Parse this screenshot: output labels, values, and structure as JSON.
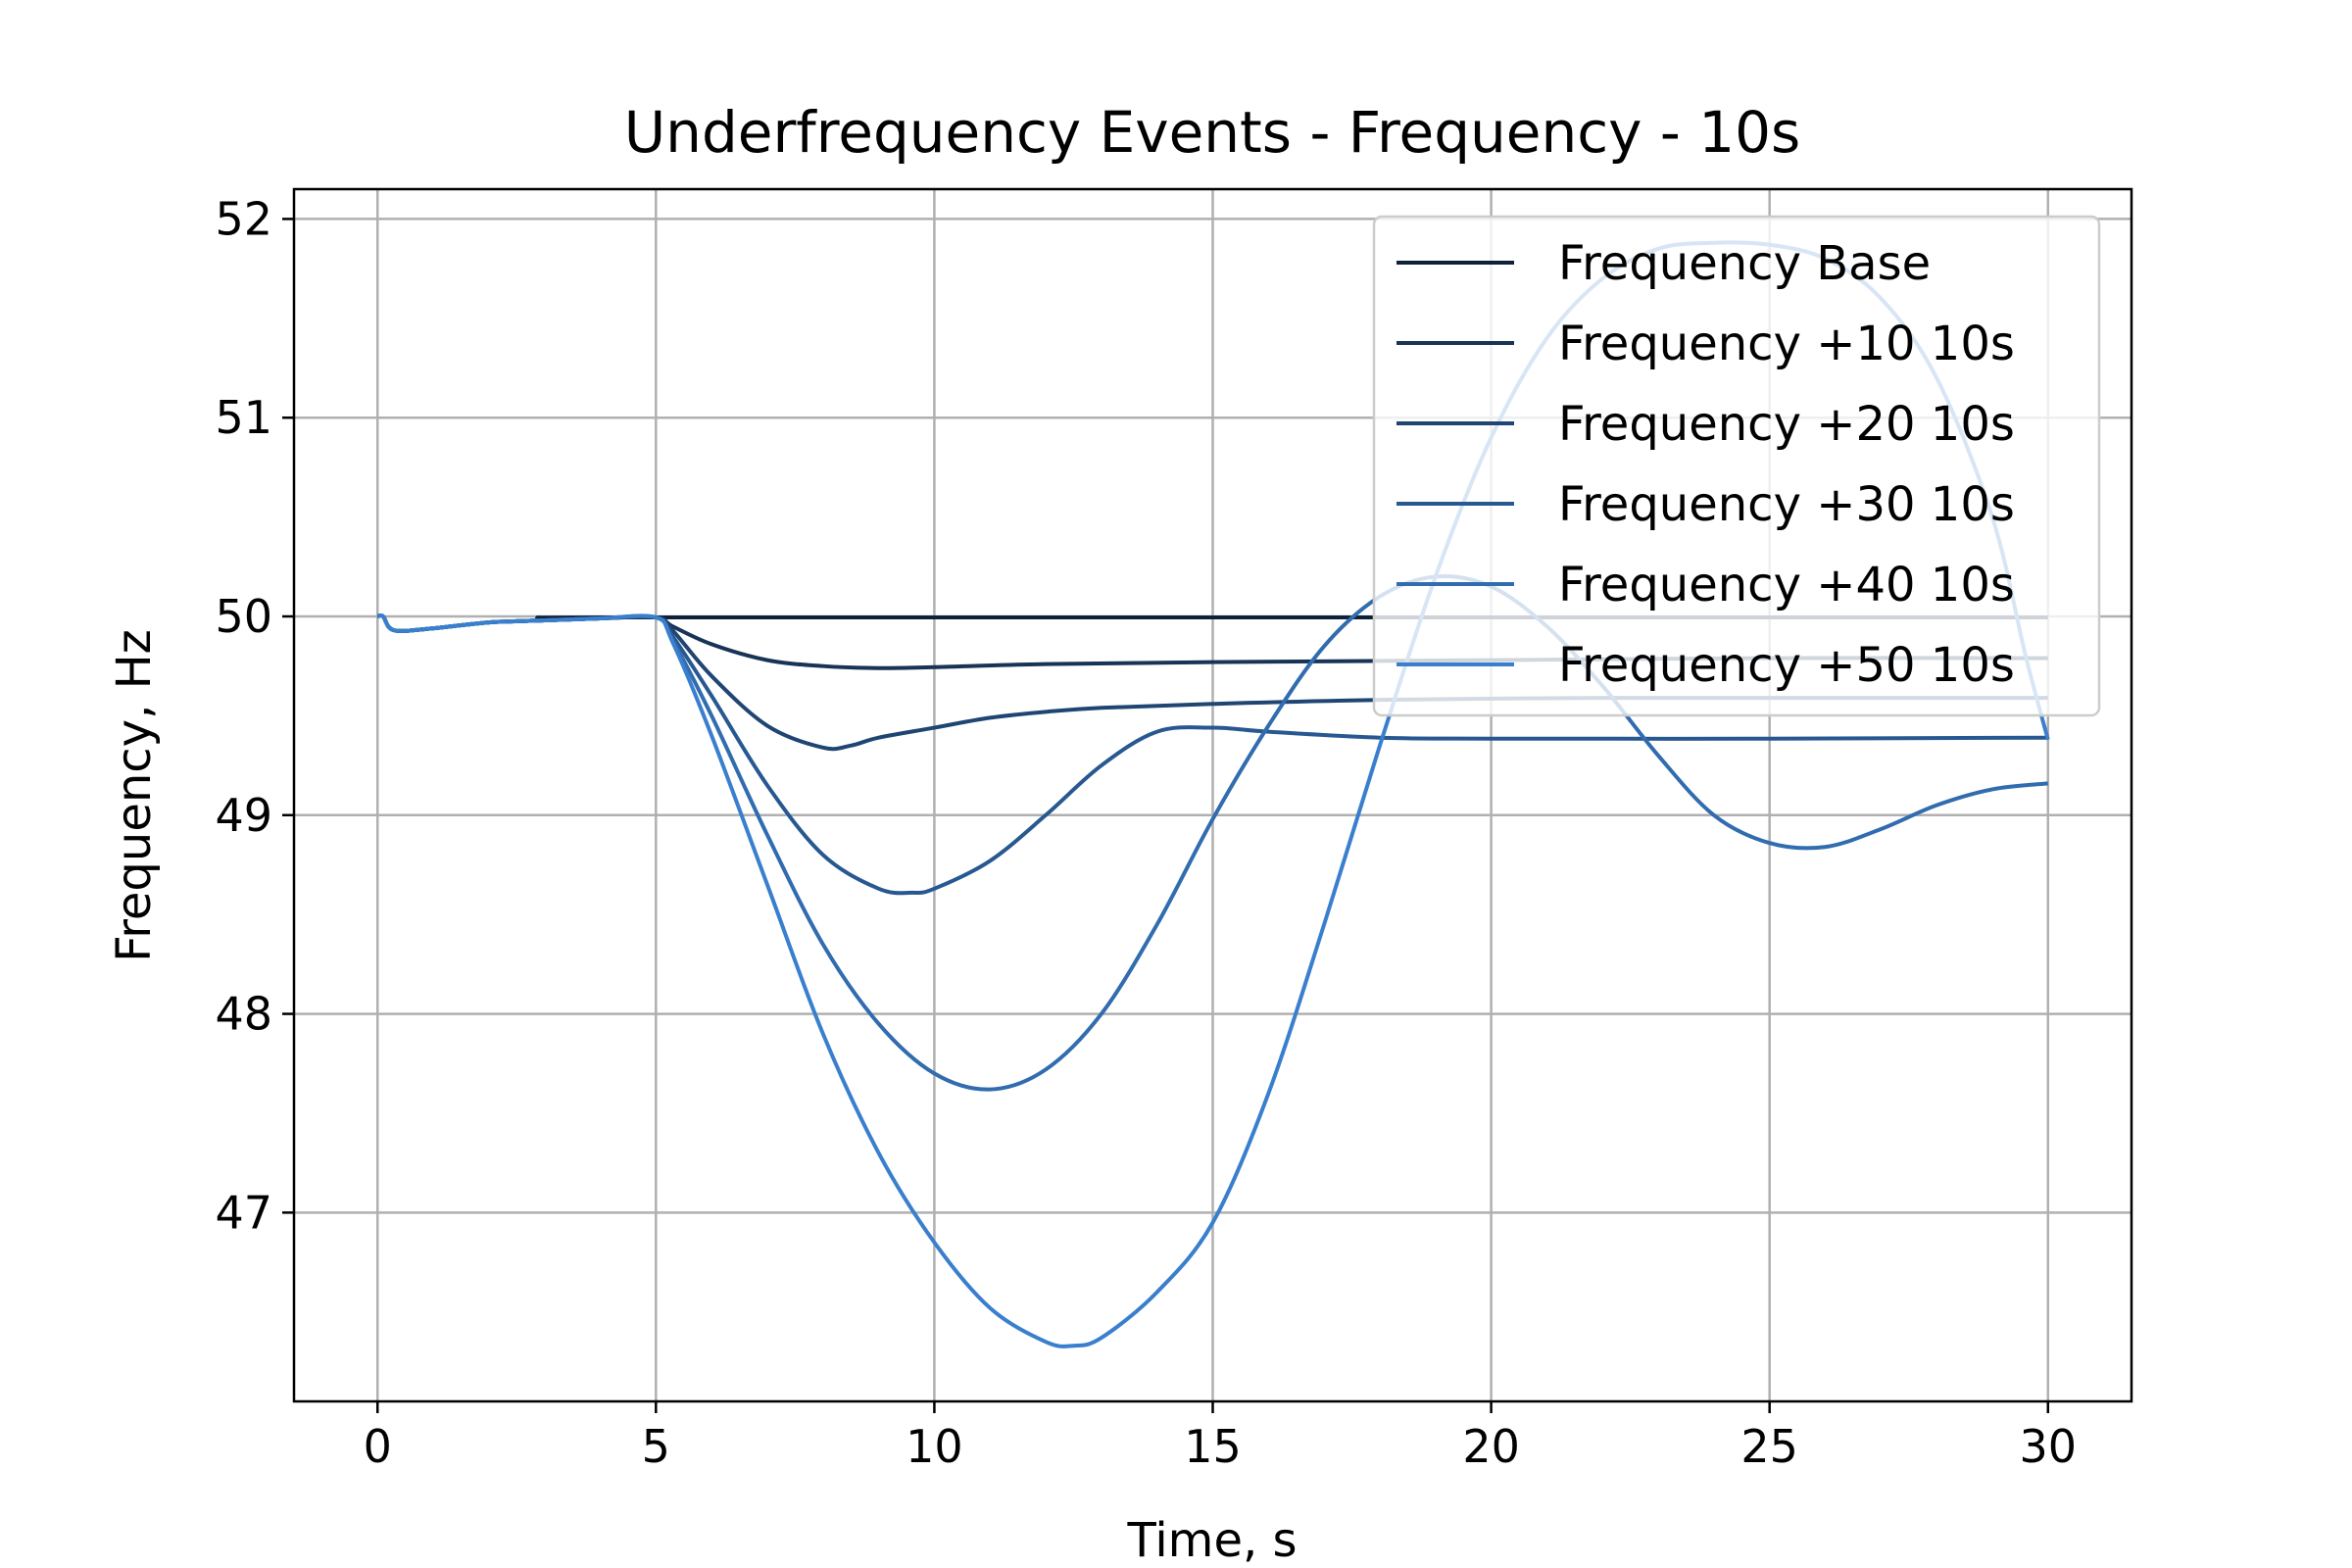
{
  "chart_data": {
    "type": "line",
    "title": "Underfrequency Events - Frequency - 10s",
    "xlabel": "Time, s",
    "ylabel": "Frequency, Hz",
    "xlim": [
      -1.5,
      31.5
    ],
    "ylim": [
      46.05,
      52.15
    ],
    "xticks": [
      0,
      5,
      10,
      15,
      20,
      25,
      30
    ],
    "yticks": [
      47,
      48,
      49,
      50,
      51,
      52
    ],
    "xtick_labels": [
      "0",
      "5",
      "10",
      "15",
      "20",
      "25",
      "30"
    ],
    "ytick_labels": [
      "47",
      "48",
      "49",
      "50",
      "51",
      "52"
    ],
    "grid": true,
    "legend_position": "top-right",
    "series": [
      {
        "name": "Frequency Base",
        "color": "#0f213a",
        "points": [
          [
            0,
            50.0
          ],
          [
            0.1,
            50.0
          ],
          [
            0.3,
            49.93
          ],
          [
            1,
            49.94
          ],
          [
            2,
            49.97
          ],
          [
            3,
            49.98
          ],
          [
            4,
            49.99
          ],
          [
            5,
            49.995
          ],
          [
            30,
            49.995
          ]
        ]
      },
      {
        "name": "Frequency +10 10s",
        "color": "#173356",
        "points": [
          [
            0,
            50.0
          ],
          [
            0.1,
            50.0
          ],
          [
            0.3,
            49.93
          ],
          [
            1,
            49.94
          ],
          [
            2,
            49.97
          ],
          [
            3,
            49.98
          ],
          [
            4,
            49.99
          ],
          [
            5,
            49.995
          ],
          [
            5.3,
            49.95
          ],
          [
            6,
            49.86
          ],
          [
            7,
            49.78
          ],
          [
            8,
            49.75
          ],
          [
            9,
            49.74
          ],
          [
            10,
            49.745
          ],
          [
            12,
            49.76
          ],
          [
            15,
            49.77
          ],
          [
            20,
            49.78
          ],
          [
            25,
            49.79
          ],
          [
            30,
            49.79
          ]
        ]
      },
      {
        "name": "Frequency +20 10s",
        "color": "#1f4573",
        "points": [
          [
            0,
            50.0
          ],
          [
            0.1,
            50.0
          ],
          [
            0.3,
            49.93
          ],
          [
            1,
            49.94
          ],
          [
            2,
            49.97
          ],
          [
            3,
            49.98
          ],
          [
            4,
            49.99
          ],
          [
            5,
            49.995
          ],
          [
            5.3,
            49.93
          ],
          [
            6,
            49.7
          ],
          [
            7,
            49.45
          ],
          [
            8,
            49.34
          ],
          [
            8.5,
            49.35
          ],
          [
            9,
            49.39
          ],
          [
            10,
            49.44
          ],
          [
            11,
            49.49
          ],
          [
            12,
            49.52
          ],
          [
            13,
            49.54
          ],
          [
            15,
            49.56
          ],
          [
            18,
            49.58
          ],
          [
            22,
            49.59
          ],
          [
            26,
            49.59
          ],
          [
            30,
            49.59
          ]
        ]
      },
      {
        "name": "Frequency +30 10s",
        "color": "#285891",
        "points": [
          [
            0,
            50.0
          ],
          [
            0.1,
            50.0
          ],
          [
            0.3,
            49.93
          ],
          [
            1,
            49.94
          ],
          [
            2,
            49.97
          ],
          [
            3,
            49.98
          ],
          [
            4,
            49.99
          ],
          [
            5,
            49.995
          ],
          [
            5.3,
            49.9
          ],
          [
            6,
            49.6
          ],
          [
            7,
            49.15
          ],
          [
            8,
            48.8
          ],
          [
            9,
            48.63
          ],
          [
            9.6,
            48.61
          ],
          [
            10,
            48.63
          ],
          [
            11,
            48.77
          ],
          [
            12,
            49.0
          ],
          [
            13,
            49.25
          ],
          [
            14,
            49.42
          ],
          [
            15,
            49.44
          ],
          [
            16,
            49.42
          ],
          [
            18,
            49.39
          ],
          [
            20,
            49.385
          ],
          [
            25,
            49.385
          ],
          [
            30,
            49.39
          ]
        ]
      },
      {
        "name": "Frequency +40 10s",
        "color": "#316caf",
        "points": [
          [
            0,
            50.0
          ],
          [
            0.1,
            50.0
          ],
          [
            0.3,
            49.93
          ],
          [
            1,
            49.94
          ],
          [
            2,
            49.97
          ],
          [
            3,
            49.98
          ],
          [
            4,
            49.99
          ],
          [
            5,
            49.995
          ],
          [
            5.3,
            49.88
          ],
          [
            6,
            49.5
          ],
          [
            7,
            48.9
          ],
          [
            8,
            48.35
          ],
          [
            9,
            47.95
          ],
          [
            10,
            47.7
          ],
          [
            11,
            47.62
          ],
          [
            12,
            47.72
          ],
          [
            13,
            48.0
          ],
          [
            14,
            48.45
          ],
          [
            15,
            48.98
          ],
          [
            16,
            49.45
          ],
          [
            17,
            49.85
          ],
          [
            18,
            50.1
          ],
          [
            19,
            50.2
          ],
          [
            20,
            50.15
          ],
          [
            21,
            49.95
          ],
          [
            22,
            49.65
          ],
          [
            23,
            49.3
          ],
          [
            24,
            49.0
          ],
          [
            25,
            48.86
          ],
          [
            26,
            48.84
          ],
          [
            27,
            48.93
          ],
          [
            28,
            49.05
          ],
          [
            29,
            49.13
          ],
          [
            30,
            49.16
          ]
        ]
      },
      {
        "name": "Frequency +50 10s",
        "color": "#3a7fcd",
        "points": [
          [
            0,
            50.0
          ],
          [
            0.1,
            50.0
          ],
          [
            0.3,
            49.93
          ],
          [
            1,
            49.94
          ],
          [
            2,
            49.97
          ],
          [
            3,
            49.98
          ],
          [
            4,
            49.99
          ],
          [
            5,
            49.995
          ],
          [
            5.3,
            49.87
          ],
          [
            6,
            49.4
          ],
          [
            7,
            48.65
          ],
          [
            8,
            47.9
          ],
          [
            9,
            47.3
          ],
          [
            10,
            46.85
          ],
          [
            11,
            46.52
          ],
          [
            12,
            46.35
          ],
          [
            12.5,
            46.33
          ],
          [
            13,
            46.37
          ],
          [
            14,
            46.6
          ],
          [
            15,
            46.95
          ],
          [
            16,
            47.6
          ],
          [
            17,
            48.45
          ],
          [
            18,
            49.35
          ],
          [
            19,
            50.2
          ],
          [
            20,
            50.9
          ],
          [
            21,
            51.4
          ],
          [
            22,
            51.7
          ],
          [
            23,
            51.85
          ],
          [
            24,
            51.88
          ],
          [
            25,
            51.87
          ],
          [
            26,
            51.8
          ],
          [
            27,
            51.6
          ],
          [
            28,
            51.2
          ],
          [
            29,
            50.5
          ],
          [
            29.6,
            49.8
          ],
          [
            30,
            49.38
          ]
        ]
      }
    ]
  }
}
